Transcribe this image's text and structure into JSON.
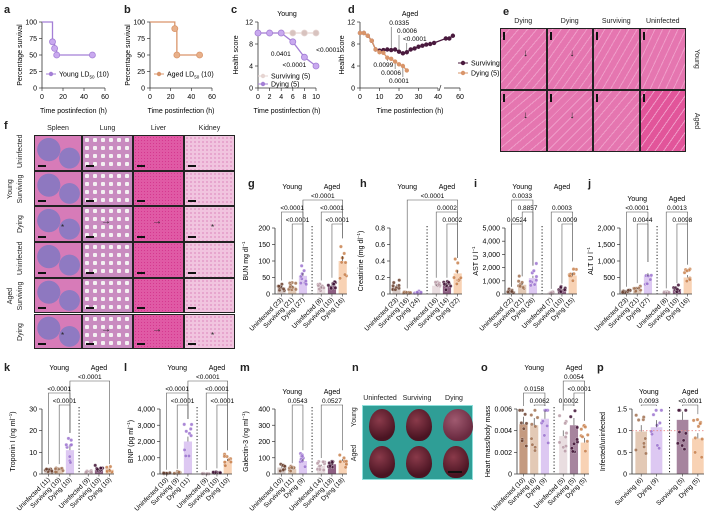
{
  "panel_letters": [
    "a",
    "b",
    "c",
    "d",
    "e",
    "f",
    "g",
    "h",
    "i",
    "j",
    "k",
    "l",
    "m",
    "n",
    "o",
    "p"
  ],
  "colors": {
    "young_uninfected": "#8a5a45",
    "young_surviving": "#e6d5d2",
    "young_dying": "#d9c2f0",
    "young_dying_dot": "#9b72cf",
    "aged_uninfected": "#e8dcdf",
    "aged_surviving": "#5b2349",
    "aged_dying": "#f8cfae",
    "aged_dying_dot": "#c8804c",
    "young_line": "#a47fd6",
    "aged_line": "#d9956a",
    "aged_surviving_line": "#4a1a3e",
    "n_background": "#2f9e96",
    "reference_line": "#e88a8a"
  },
  "e": {
    "columns": [
      "Dying",
      "Dying",
      "Surviving",
      "Uninfected"
    ],
    "rows": [
      "Young",
      "Aged"
    ]
  },
  "f": {
    "columns": [
      "Spleen",
      "Lung",
      "Liver",
      "Kidney"
    ],
    "rows": [
      "Uninfected",
      "Surviving",
      "Dying",
      "Uninfected",
      "Surviving",
      "Dying"
    ],
    "groups": [
      "Young",
      "Aged"
    ]
  },
  "n": {
    "columns": [
      "Uninfected",
      "Surviving",
      "Dying"
    ],
    "rows": [
      "Young",
      "Aged"
    ]
  },
  "chart_data": [
    {
      "panel": "a",
      "type": "line",
      "step": true,
      "xlabel": "Time postinfection (h)",
      "ylabel": "Percentage survival",
      "xlim": [
        0,
        60
      ],
      "ylim": [
        0,
        100
      ],
      "xticks": [
        0,
        20,
        40,
        60
      ],
      "yticks": [
        0,
        25,
        50,
        75,
        100
      ],
      "series": [
        {
          "name": "Young LD",
          "name_sub": "50",
          "name_suffix": " (10)",
          "color_key": "young_line",
          "x": [
            0,
            10,
            12,
            14,
            48
          ],
          "y": [
            100,
            70,
            60,
            50,
            50
          ]
        }
      ]
    },
    {
      "panel": "b",
      "type": "line",
      "step": true,
      "xlabel": "Time postinfection (h)",
      "ylabel": "Percentage survival",
      "xlim": [
        0,
        60
      ],
      "ylim": [
        0,
        100
      ],
      "xticks": [
        0,
        20,
        40,
        60
      ],
      "yticks": [
        0,
        25,
        50,
        75,
        100
      ],
      "series": [
        {
          "name": "Aged LD",
          "name_sub": "50",
          "name_suffix": " (10)",
          "color_key": "aged_line",
          "x": [
            0,
            24,
            26,
            48
          ],
          "y": [
            100,
            90,
            50,
            50
          ]
        }
      ]
    },
    {
      "panel": "c",
      "type": "line",
      "title": "Young",
      "xlabel": "Time postinfection (h)",
      "ylabel": "Health score",
      "xlim": [
        0,
        10
      ],
      "ylim": [
        0,
        12
      ],
      "xticks": [
        0,
        2,
        4,
        6,
        8,
        10
      ],
      "yticks": [
        0,
        4,
        8,
        12
      ],
      "series": [
        {
          "name": "Surviving (5)",
          "color_key": "young_surviving",
          "x": [
            0,
            2,
            4,
            6,
            8,
            10
          ],
          "y": [
            10,
            10,
            10,
            10,
            10,
            10
          ]
        },
        {
          "name": "Dying (5)",
          "color_key": "young_line",
          "x": [
            0,
            2,
            4,
            6,
            8,
            10
          ],
          "y": [
            10,
            10,
            10,
            8.4,
            5.6,
            4.0
          ]
        }
      ],
      "annotations": [
        {
          "x": 6,
          "text": "0.0401"
        },
        {
          "x": 8,
          "text": "<0.0001"
        },
        {
          "x": 10,
          "text": "<0.0001"
        }
      ]
    },
    {
      "panel": "d",
      "type": "line",
      "title": "Aged",
      "xlabel": "Time postinfection (h)",
      "ylabel": "Health score",
      "xlim": [
        0,
        60
      ],
      "ylim": [
        0,
        12
      ],
      "axis_break": [
        40,
        42
      ],
      "xticks": [
        0,
        10,
        20,
        30,
        40,
        60
      ],
      "yticks": [
        0,
        4,
        8,
        12
      ],
      "series": [
        {
          "name": "Surviving (5)",
          "color_key": "aged_surviving_line",
          "x": [
            0,
            2,
            4,
            6,
            8,
            10,
            12,
            14,
            16,
            18,
            20,
            22,
            24,
            26,
            28,
            30,
            32,
            34,
            36,
            38,
            44,
            48,
            52
          ],
          "y": [
            10,
            10,
            9.5,
            8.6,
            7,
            6.8,
            6.9,
            7,
            6.9,
            7,
            6.6,
            6.3,
            6.5,
            7,
            7.2,
            7.5,
            7.7,
            7.9,
            8,
            8.2,
            9,
            9,
            9.5
          ]
        },
        {
          "name": "Dying (5)",
          "color_key": "aged_line",
          "x": [
            0,
            2,
            4,
            6,
            8,
            10,
            12,
            14,
            16,
            18,
            20,
            22,
            24
          ],
          "y": [
            10,
            10,
            9.5,
            8.6,
            7,
            6.5,
            6.4,
            5.5,
            5.3,
            4.8,
            4.3,
            4,
            3.2
          ]
        }
      ],
      "annotations": [
        {
          "x": 16,
          "text": "0.0335",
          "pos": "above"
        },
        {
          "x": 20,
          "text": "0.0006",
          "pos": "above"
        },
        {
          "x": 24,
          "text": "<0.0001",
          "pos": "above"
        },
        {
          "x": 14,
          "text": "0.0099",
          "pos": "below"
        },
        {
          "x": 18,
          "text": "0.0006",
          "pos": "below"
        },
        {
          "x": 22,
          "text": "0.0001",
          "pos": "below"
        }
      ]
    },
    {
      "panel": "g",
      "type": "bar",
      "ylabel": "BUN mg dl",
      "ylabel_sup": "−1",
      "ylim": [
        0,
        200
      ],
      "yticks": [
        "0",
        "50",
        "100",
        "150",
        "200"
      ],
      "groups": [
        "Young",
        "Aged"
      ],
      "categories": [
        "Uninfected (23)",
        "Surviving (21)",
        "Dying (27)",
        "Uninfected (8)",
        "Surviving (10)",
        "Dying (16)"
      ],
      "values": [
        20,
        22,
        55,
        20,
        25,
        100
      ],
      "comparisons": [
        {
          "from": 1,
          "to": 2,
          "p": "<0.0001"
        },
        {
          "from": 0,
          "to": 2,
          "p": "<0.0001"
        },
        {
          "from": 4,
          "to": 5,
          "p": "<0.0001"
        },
        {
          "from": 3,
          "to": 5,
          "p": "<0.0001"
        },
        {
          "from": 2,
          "to": 5,
          "p": "<0.0001"
        }
      ]
    },
    {
      "panel": "h",
      "type": "bar",
      "ylabel": "Creatinine (mg dl",
      "ylabel_sup": "−1",
      "ylabel_end": ")",
      "ylim": [
        0,
        0.8
      ],
      "yticks": [
        "0",
        "0.2",
        "0.4",
        "0.6",
        "0.8"
      ],
      "groups": [
        "Young",
        "Aged"
      ],
      "categories": [
        "Uninfected (23)",
        "Surviving (16)",
        "Dying (24)",
        "Uninfected (16)",
        "Surviving (14)",
        "Dying (22)"
      ],
      "values": [
        0.1,
        0.02,
        0.02,
        0.1,
        0.1,
        0.25
      ],
      "comparisons": [
        {
          "from": 4,
          "to": 5,
          "p": "0.0002"
        },
        {
          "from": 3,
          "to": 5,
          "p": "0.0002"
        },
        {
          "from": 1,
          "to": 5,
          "p": "<0.0001"
        }
      ]
    },
    {
      "panel": "i",
      "type": "bar",
      "ylabel": "AST U l",
      "ylabel_sup": "−1",
      "ylim": [
        0,
        5000
      ],
      "yticks": [
        "0",
        "1,000",
        "2,000",
        "3,000",
        "4,000",
        "5,000"
      ],
      "groups": [
        "Young",
        "Aged"
      ],
      "categories": [
        "Uninfected (22)",
        "Surviving (21)",
        "Dying (26)",
        "Uninfected (7)",
        "Surviving (10)",
        "Dying (15)"
      ],
      "values": [
        200,
        700,
        1200,
        100,
        350,
        1400
      ],
      "comparisons": [
        {
          "from": 0,
          "to": 1,
          "p": "0.0524"
        },
        {
          "from": 1,
          "to": 2,
          "p": "0.8857"
        },
        {
          "from": 0,
          "to": 2,
          "p": "0.0033"
        },
        {
          "from": 4,
          "to": 5,
          "p": "0.0009"
        },
        {
          "from": 3,
          "to": 5,
          "p": "0.0003"
        }
      ]
    },
    {
      "panel": "j",
      "type": "bar",
      "ylabel": "ALT U l",
      "ylabel_sup": "−1",
      "ylim": [
        0,
        2000
      ],
      "yticks": [
        "0",
        "500",
        "1,000",
        "1,500",
        "2,000"
      ],
      "groups": [
        "Young",
        "Aged"
      ],
      "categories": [
        "Uninfected (23)",
        "Surviving (21)",
        "Dying (27)",
        "Uninfected (8)",
        "Surviving (10)",
        "Dying (16)"
      ],
      "values": [
        80,
        150,
        550,
        50,
        150,
        500
      ],
      "comparisons": [
        {
          "from": 1,
          "to": 2,
          "p": "0.0044"
        },
        {
          "from": 0,
          "to": 2,
          "p": "<0.0001"
        },
        {
          "from": 4,
          "to": 5,
          "p": "0.0098"
        },
        {
          "from": 3,
          "to": 5,
          "p": "0.0013"
        }
      ]
    },
    {
      "panel": "k",
      "type": "bar",
      "ylabel": "Troponin I (ng ml",
      "ylabel_sup": "−1",
      "ylabel_end": ")",
      "ylim": [
        0,
        30
      ],
      "yticks": [
        "0",
        "10",
        "20",
        "30"
      ],
      "groups": [
        "Young",
        "Aged"
      ],
      "categories": [
        "Uninfected (11)",
        "Surviving (10)",
        "Dying (10)",
        "Uninfected (9)",
        "Surviving (10)",
        "Dying (10)"
      ],
      "values": [
        2,
        2,
        11,
        1,
        2,
        2
      ],
      "comparisons": [
        {
          "from": 1,
          "to": 2,
          "p": "<0.0001"
        },
        {
          "from": 2,
          "to": 5,
          "p": "<0.0001"
        },
        {
          "from": 0,
          "to": 2,
          "p": "<0.0001"
        }
      ]
    },
    {
      "panel": "l",
      "type": "bar",
      "ylabel": "BNP (pg ml",
      "ylabel_sup": "−1",
      "ylabel_end": ")",
      "ylim": [
        0,
        4000
      ],
      "yticks": [
        "0",
        "1,000",
        "2,000",
        "3,000",
        "4,000"
      ],
      "groups": [
        "Young",
        "Aged"
      ],
      "categories": [
        "Uninfected (10)",
        "Surviving (9)",
        "Dying (11)",
        "Uninfected (9)",
        "Surviving (10)",
        "Dying (10)"
      ],
      "values": [
        50,
        80,
        2000,
        20,
        100,
        800
      ],
      "comparisons": [
        {
          "from": 1,
          "to": 2,
          "p": "<0.0001"
        },
        {
          "from": 0,
          "to": 2,
          "p": "<0.0001"
        },
        {
          "from": 4,
          "to": 5,
          "p": "<0.0001"
        },
        {
          "from": 3,
          "to": 5,
          "p": "<0.0001"
        },
        {
          "from": 2,
          "to": 5,
          "p": "<0.0001"
        }
      ]
    },
    {
      "panel": "m",
      "type": "bar",
      "ylabel": "Galectin-3 (ng ml",
      "ylabel_sup": "−1",
      "ylabel_end": ")",
      "ylim": [
        0,
        400
      ],
      "yticks": [
        "0",
        "100",
        "200",
        "300",
        "400"
      ],
      "groups": [
        "Young",
        "Aged"
      ],
      "categories": [
        "Uninfected (10)",
        "Surviving (11)",
        "Dying (9)",
        "Uninfected (14)",
        "Surviving (18)",
        "Dying (18)"
      ],
      "values": [
        40,
        30,
        80,
        50,
        60,
        80
      ],
      "comparisons": [
        {
          "from": 1,
          "to": 2,
          "p": "0.0543"
        },
        {
          "from": 3,
          "to": 5,
          "p": "0.0527"
        }
      ]
    },
    {
      "panel": "o",
      "type": "bar",
      "ylabel": "Heart mass/body mass",
      "ylim": [
        0,
        0.006
      ],
      "yticks": [
        "0",
        "0.002",
        "0.004",
        "0.006"
      ],
      "groups": [
        "Young",
        "Aged"
      ],
      "categories": [
        "Uninfected (10)",
        "Surviving (6)",
        "Dying (9)",
        "Uninfected (5)",
        "Surviving (5)",
        "Dying (5)"
      ],
      "values": [
        0.0046,
        0.0045,
        0.0051,
        0.0035,
        0.0045,
        0.0029
      ],
      "colors": [
        "young_uninfected",
        "young_surviving",
        "young_dying",
        "aged_uninfected",
        "aged_surviving",
        "aged_dying"
      ],
      "comparisons": [
        {
          "from": 1,
          "to": 2,
          "p": "0.0062"
        },
        {
          "from": 0,
          "to": 2,
          "p": "0.0158"
        },
        {
          "from": 3,
          "to": 4,
          "p": "0.0002"
        },
        {
          "from": 4,
          "to": 5,
          "p": "<0.0001"
        },
        {
          "from": 3,
          "to": 5,
          "p": "0.0054"
        }
      ]
    },
    {
      "panel": "p",
      "type": "bar",
      "ylabel": "Infected/uninfected",
      "ylim": [
        0,
        1.5
      ],
      "yticks": [
        "0",
        "0.5",
        "1.0",
        "1.5"
      ],
      "groups": [
        "Young",
        "Aged"
      ],
      "group_sizes": [
        2,
        2
      ],
      "reference_y": 1.0,
      "categories": [
        "Surviving (6)",
        "Dying (9)",
        "Surviving (5)",
        "Dying (5)"
      ],
      "values": [
        0.98,
        1.08,
        1.25,
        0.82
      ],
      "colors": [
        "young_surviving",
        "young_dying",
        "aged_surviving",
        "aged_dying"
      ],
      "comparisons": [
        {
          "from": 0,
          "to": 1,
          "p": "0.0093"
        },
        {
          "from": 2,
          "to": 3,
          "p": "<0.0001"
        }
      ]
    }
  ]
}
